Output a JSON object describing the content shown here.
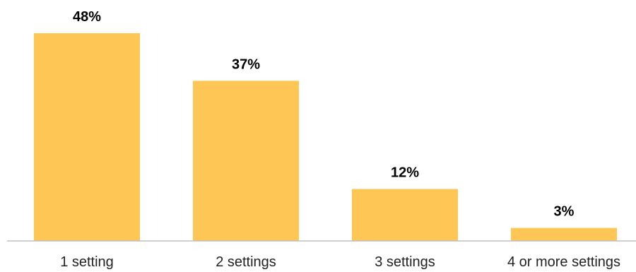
{
  "chart_data": {
    "type": "bar",
    "categories": [
      "1 setting",
      "2 settings",
      "3 settings",
      "4 or more settings"
    ],
    "values": [
      48,
      37,
      12,
      3
    ],
    "value_labels": [
      "48%",
      "37%",
      "12%",
      "3%"
    ],
    "title": "",
    "xlabel": "",
    "ylabel": "",
    "ylim": [
      0,
      50
    ],
    "grid": false,
    "legend": "none",
    "bar_color": "#FDC655",
    "axis_color": "#BFBFBF"
  }
}
